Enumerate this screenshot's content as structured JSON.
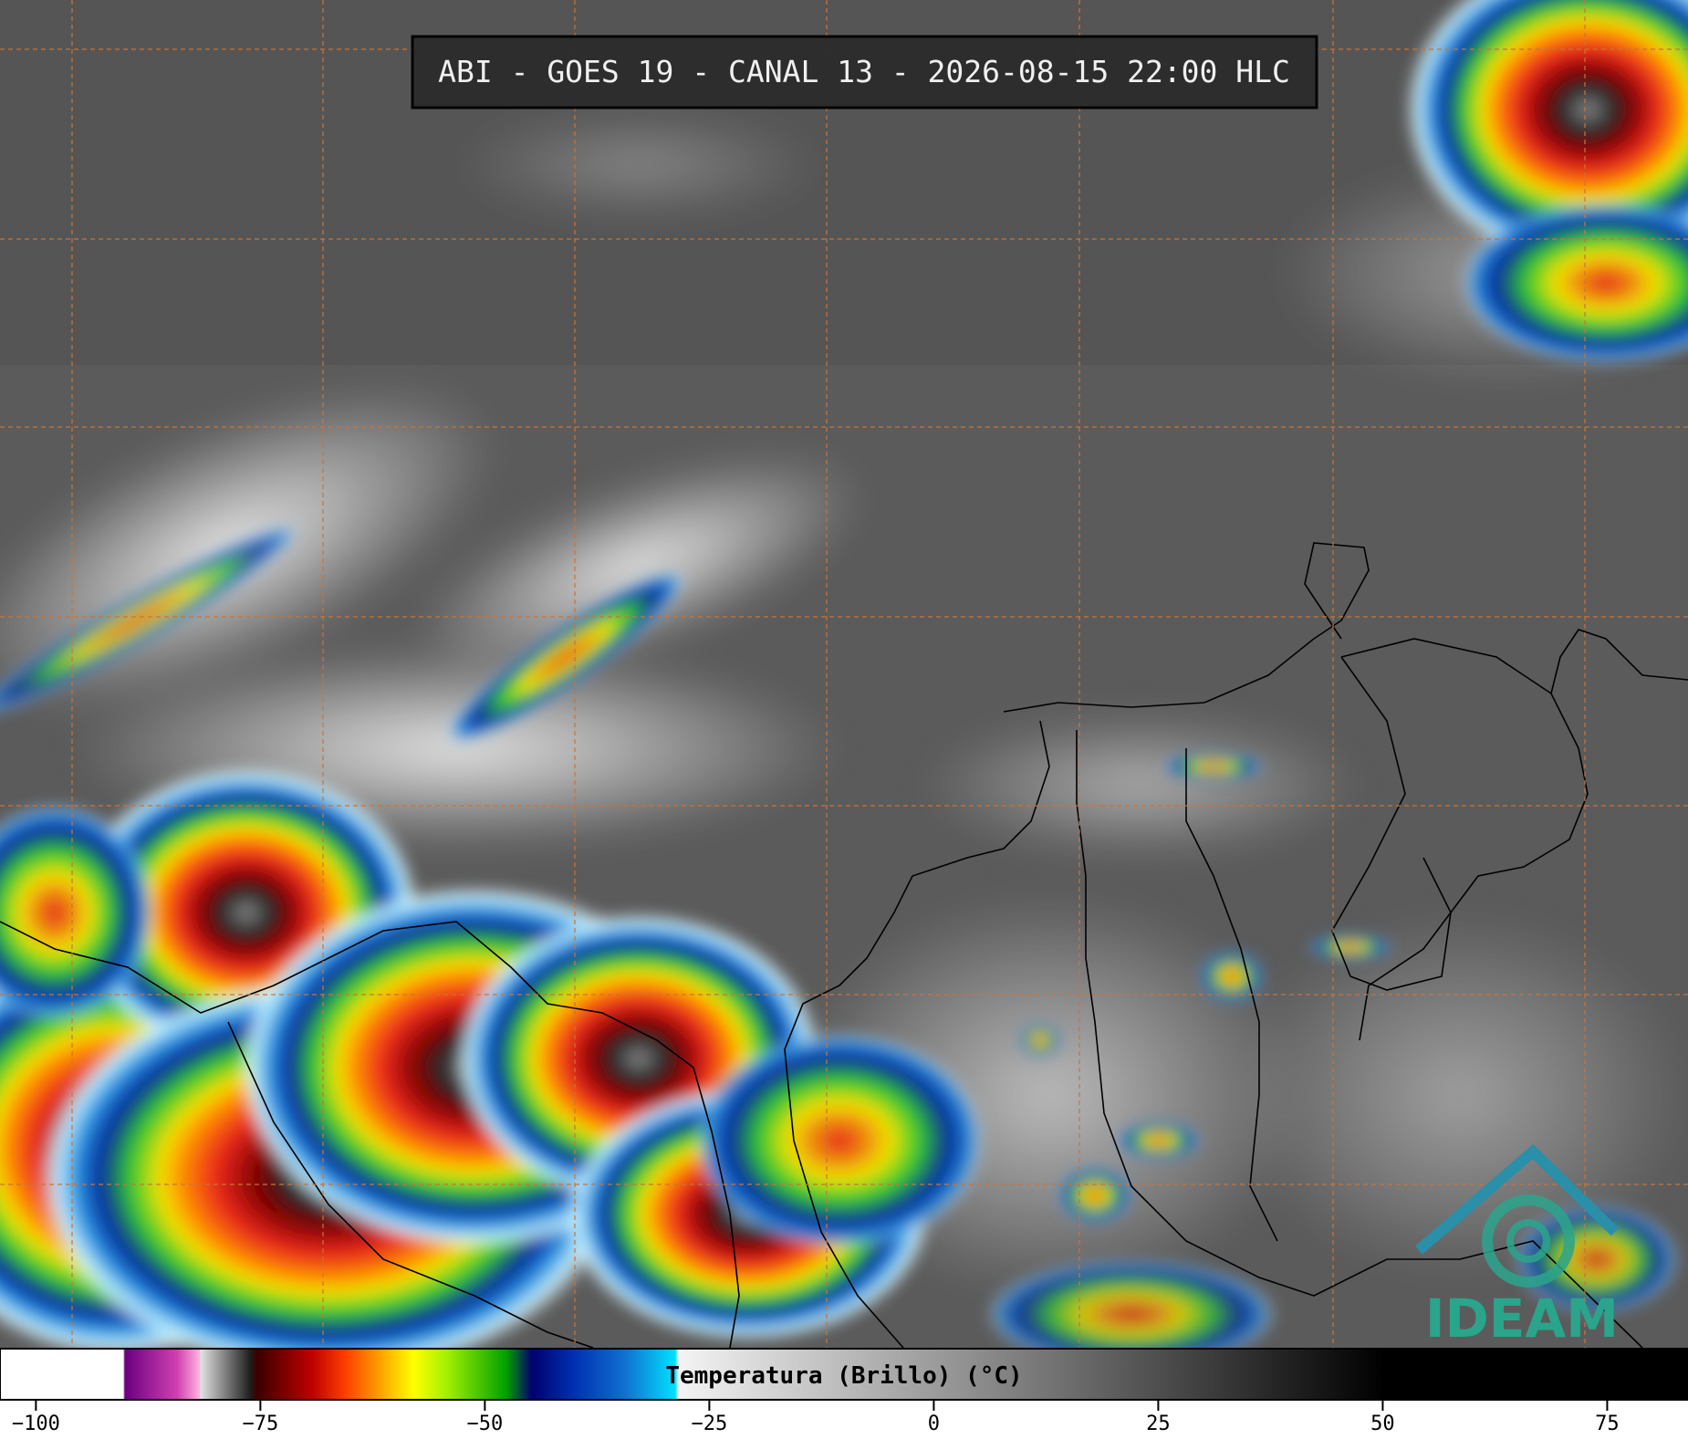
{
  "title": "ABI - GOES 19 - CANAL 13 - 2026-08-15 22:00 HLC",
  "colorbar": {
    "label": "Temperatura (Brillo) (°C)",
    "range": [
      -104,
      84
    ],
    "ticks": [
      {
        "value": -100,
        "label": "−100"
      },
      {
        "value": -75,
        "label": "−75"
      },
      {
        "value": -50,
        "label": "−50"
      },
      {
        "value": -25,
        "label": "−25"
      },
      0,
      25,
      50,
      75
    ]
  },
  "logo": "IDEAM"
}
